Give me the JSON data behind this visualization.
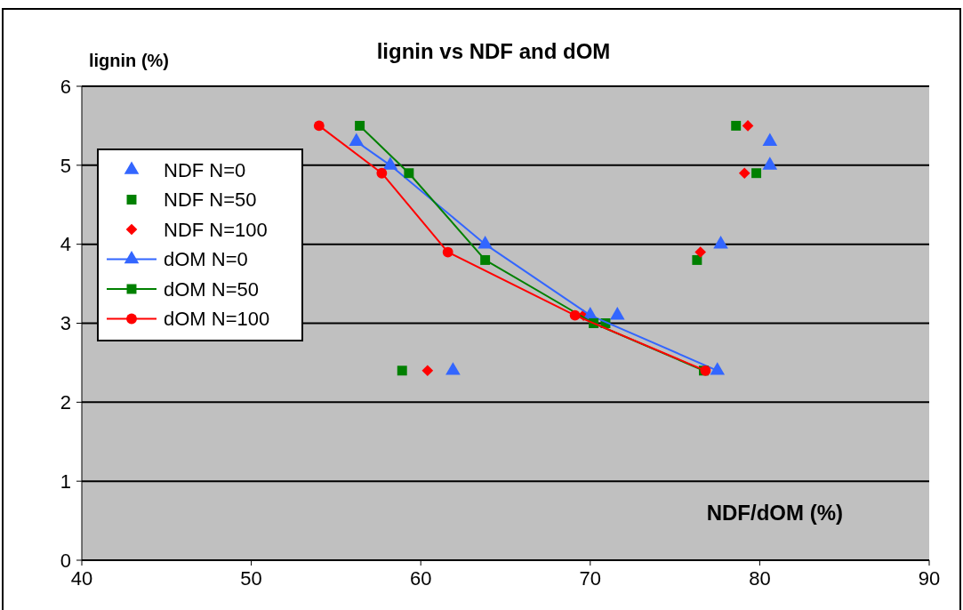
{
  "chart_data": {
    "type": "scatter",
    "title": "lignin vs NDF and dOM",
    "xlabel": "NDF/dOM (%)",
    "ylabel": "lignin (%)",
    "xlim": [
      40,
      90
    ],
    "xticks": [
      40,
      50,
      60,
      70,
      80,
      90
    ],
    "ylim": [
      0,
      6
    ],
    "yticks": [
      0,
      1,
      2,
      3,
      4,
      5,
      6
    ],
    "grid": "y",
    "legend": "left",
    "series": [
      {
        "name": "NDF N=0",
        "marker": "triangle",
        "color": "#3366ff",
        "x": [
          80.6,
          80.6,
          77.7,
          71.6,
          61.9
        ],
        "values": [
          5.3,
          5.0,
          4.0,
          3.1,
          2.4
        ]
      },
      {
        "name": "NDF N=50",
        "marker": "square",
        "color": "#008000",
        "x": [
          78.6,
          79.8,
          76.3,
          70.9,
          58.9
        ],
        "values": [
          5.5,
          4.9,
          3.8,
          3.0,
          2.4
        ]
      },
      {
        "name": "NDF N=100",
        "marker": "diamond",
        "color": "#ff0000",
        "x": [
          79.3,
          79.1,
          76.5,
          69.6,
          60.4
        ],
        "values": [
          5.5,
          4.9,
          3.9,
          3.1,
          2.4
        ]
      },
      {
        "name": "dOM N=0",
        "type": "line",
        "marker": "triangle",
        "color": "#3366ff",
        "x": [
          56.2,
          58.2,
          63.8,
          70.0,
          77.5
        ],
        "values": [
          5.3,
          5.0,
          4.0,
          3.1,
          2.4
        ]
      },
      {
        "name": "dOM N=50",
        "type": "line",
        "marker": "square",
        "color": "#008000",
        "x": [
          56.4,
          59.3,
          63.8,
          70.2,
          76.7
        ],
        "values": [
          5.5,
          4.9,
          3.8,
          3.0,
          2.4
        ]
      },
      {
        "name": "dOM N=100",
        "type": "line",
        "marker": "circle",
        "color": "#ff0000",
        "x": [
          54.0,
          57.7,
          61.6,
          69.1,
          76.8
        ],
        "values": [
          5.5,
          4.9,
          3.9,
          3.1,
          2.4
        ]
      }
    ]
  }
}
